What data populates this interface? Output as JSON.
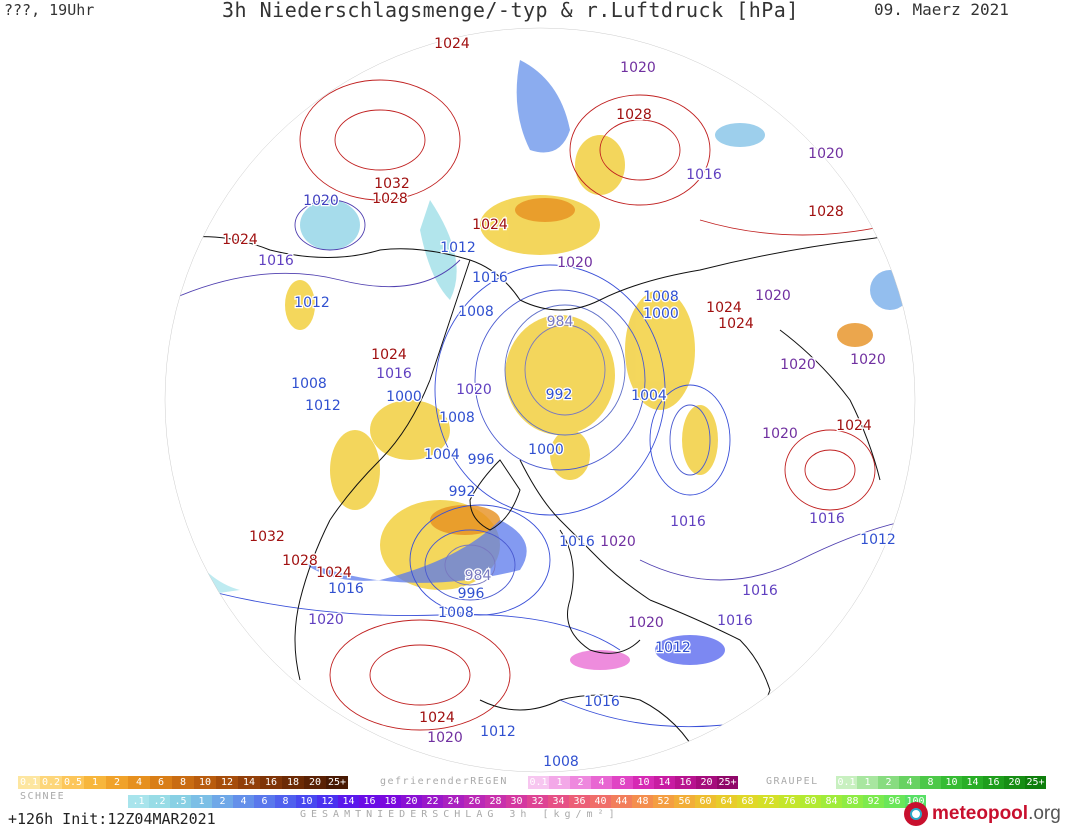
{
  "header": {
    "left": "???, 19Uhr",
    "title": "3h Niederschlagsmenge/-typ & r.Luftdruck [hPa]",
    "date": "09. Maerz 2021"
  },
  "footer": {
    "init": "+126h  Init:12Z04MAR2021",
    "logo_brand": "meteopool",
    "logo_tld": ".org"
  },
  "legends": {
    "snow": {
      "label": "SCHNEE",
      "labels": [
        "0.1",
        "0.2",
        "0.5",
        "1",
        "2",
        "4",
        "6",
        "8",
        "10",
        "12",
        "14",
        "16",
        "18",
        "20",
        "25+"
      ],
      "colors": [
        "#fde6a0",
        "#fdd67a",
        "#fcc65a",
        "#f7b63c",
        "#f0a22a",
        "#e6901e",
        "#d97e17",
        "#c96c12",
        "#b95c0e",
        "#a64d0b",
        "#923f09",
        "#7f3407",
        "#6c2a05",
        "#5a2104",
        "#481903"
      ]
    },
    "rain": {
      "label": "gefrierenderREGEN",
      "labels": [
        "0.1",
        "1",
        "2",
        "4",
        "8",
        "10",
        "14",
        "16",
        "20",
        "25+"
      ],
      "colors": [
        "#f7c6f0",
        "#f3a8e8",
        "#ee88de",
        "#e866d2",
        "#e044c4",
        "#d62ab4",
        "#c81ca2",
        "#b8138f",
        "#a50c7c",
        "#900769"
      ]
    },
    "graupel": {
      "label": "GRAUPEL",
      "labels": [
        "0.1",
        "1",
        "2",
        "4",
        "8",
        "10",
        "14",
        "16",
        "20",
        "25+"
      ],
      "colors": [
        "#c8f0c0",
        "#a8e6a0",
        "#88dc80",
        "#68d262",
        "#4cc848",
        "#36bc34",
        "#28ae26",
        "#1e9e1c",
        "#168e14",
        "#0e7e0c"
      ]
    },
    "total": {
      "label": "GESAMTNIEDERSCHLAG 3h [kg/m²]",
      "labels": [
        ".1",
        ".2",
        ".5",
        "1",
        "2",
        "4",
        "6",
        "8",
        "10",
        "12",
        "14",
        "16",
        "18",
        "20",
        "22",
        "24",
        "26",
        "28",
        "30",
        "32",
        "34",
        "36",
        "40",
        "44",
        "48",
        "52",
        "56",
        "60",
        "64",
        "68",
        "72",
        "76",
        "80",
        "84",
        "88",
        "92",
        "96",
        "100"
      ],
      "colors": [
        "#a8e4ec",
        "#98dce6",
        "#88d0e4",
        "#7cbfe6",
        "#6fa8e8",
        "#6490ea",
        "#5a78ec",
        "#5060ee",
        "#4848f0",
        "#4a30f0",
        "#5a18ec",
        "#6a0ce6",
        "#7a08de",
        "#8a10d4",
        "#9a18ca",
        "#aa20c0",
        "#ba28b6",
        "#c830ac",
        "#d438a0",
        "#de4494",
        "#e65086",
        "#ec5e78",
        "#f06e6a",
        "#f27e5c",
        "#f48e4e",
        "#f49e42",
        "#f2ae38",
        "#eebe30",
        "#e8cc2a",
        "#e0d828",
        "#d4e028",
        "#c4e62c",
        "#b2ea32",
        "#a0ec3a",
        "#8eec44",
        "#7cea4e",
        "#6ae65a",
        "#58e066"
      ]
    }
  },
  "pressure_labels": [
    {
      "v": "1024",
      "c": "#a01010"
    },
    {
      "v": "1020",
      "c": "#7030a0"
    },
    {
      "v": "1028",
      "c": "#a01010"
    },
    {
      "v": "1020",
      "c": "#7030a0"
    },
    {
      "v": "1016",
      "c": "#6040c0"
    },
    {
      "v": "1028",
      "c": "#a01010"
    },
    {
      "v": "1024",
      "c": "#a01010"
    },
    {
      "v": "1032",
      "c": "#a01010"
    },
    {
      "v": "1028",
      "c": "#a01010"
    },
    {
      "v": "1020",
      "c": "#4040c0"
    },
    {
      "v": "1012",
      "c": "#3050d0"
    },
    {
      "v": "1024",
      "c": "#a01010"
    },
    {
      "v": "1016",
      "c": "#6040c0"
    },
    {
      "v": "1016",
      "c": "#3050d0"
    },
    {
      "v": "1020",
      "c": "#7030a0"
    },
    {
      "v": "1012",
      "c": "#3050d0"
    },
    {
      "v": "1008",
      "c": "#3050d0"
    },
    {
      "v": "984",
      "c": "#7878c0"
    },
    {
      "v": "1008",
      "c": "#3050d0"
    },
    {
      "v": "1000",
      "c": "#3050d0"
    },
    {
      "v": "1024",
      "c": "#a01010"
    },
    {
      "v": "1024",
      "c": "#a01010"
    },
    {
      "v": "1020",
      "c": "#7030a0"
    },
    {
      "v": "1024",
      "c": "#a01010"
    },
    {
      "v": "1016",
      "c": "#6040c0"
    },
    {
      "v": "1020",
      "c": "#7030a0"
    },
    {
      "v": "1020",
      "c": "#7030a0"
    },
    {
      "v": "1008",
      "c": "#3050d0"
    },
    {
      "v": "1000",
      "c": "#3050d0"
    },
    {
      "v": "1020",
      "c": "#6040c0"
    },
    {
      "v": "992",
      "c": "#3050d0"
    },
    {
      "v": "1004",
      "c": "#3050d0"
    },
    {
      "v": "1012",
      "c": "#3050d0"
    },
    {
      "v": "1008",
      "c": "#3050d0"
    },
    {
      "v": "1020",
      "c": "#7030a0"
    },
    {
      "v": "1024",
      "c": "#a01010"
    },
    {
      "v": "1004",
      "c": "#3050d0"
    },
    {
      "v": "996",
      "c": "#3050d0"
    },
    {
      "v": "1000",
      "c": "#3050d0"
    },
    {
      "v": "992",
      "c": "#3050d0"
    },
    {
      "v": "1016",
      "c": "#6040c0"
    },
    {
      "v": "1016",
      "c": "#6040c0"
    },
    {
      "v": "1016",
      "c": "#3050d0"
    },
    {
      "v": "1020",
      "c": "#7030a0"
    },
    {
      "v": "1012",
      "c": "#3050d0"
    },
    {
      "v": "1032",
      "c": "#a01010"
    },
    {
      "v": "1028",
      "c": "#a01010"
    },
    {
      "v": "1024",
      "c": "#a01010"
    },
    {
      "v": "1016",
      "c": "#3050d0"
    },
    {
      "v": "984",
      "c": "#7878c0"
    },
    {
      "v": "996",
      "c": "#3050d0"
    },
    {
      "v": "1008",
      "c": "#3050d0"
    },
    {
      "v": "1020",
      "c": "#6040c0"
    },
    {
      "v": "1016",
      "c": "#6040c0"
    },
    {
      "v": "1016",
      "c": "#6040c0"
    },
    {
      "v": "1020",
      "c": "#7030a0"
    },
    {
      "v": "1012",
      "c": "#3050d0"
    },
    {
      "v": "1016",
      "c": "#3050d0"
    },
    {
      "v": "1024",
      "c": "#a01010"
    },
    {
      "v": "1020",
      "c": "#7030a0"
    },
    {
      "v": "1012",
      "c": "#3050d0"
    },
    {
      "v": "1008",
      "c": "#3050d0"
    }
  ]
}
